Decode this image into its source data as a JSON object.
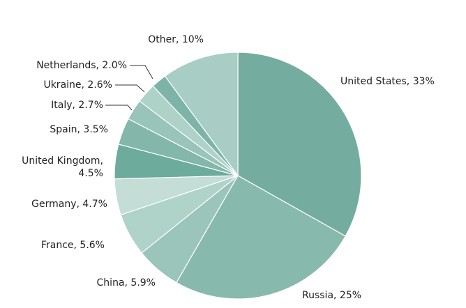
{
  "chart_data": {
    "type": "pie",
    "title": "",
    "start": "12 o'clock",
    "direction": "clockwise",
    "slices": [
      {
        "name": "United States",
        "value": 33,
        "label": "United States, 33%",
        "color": "#74ad9f"
      },
      {
        "name": "Russia",
        "value": 25,
        "label": "Russia, 25%",
        "color": "#87b9ad"
      },
      {
        "name": "China",
        "value": 5.9,
        "label": "China, 5.9%",
        "color": "#9bc5bb"
      },
      {
        "name": "France",
        "value": 5.6,
        "label": "France, 5.6%",
        "color": "#afd2c9"
      },
      {
        "name": "Germany",
        "value": 4.7,
        "label": "Germany, 4.7%",
        "color": "#c4ddd6"
      },
      {
        "name": "United Kingdom",
        "value": 4.5,
        "label": [
          "United Kingdom,",
          "4.5%"
        ],
        "color": "#6dab9c"
      },
      {
        "name": "Spain",
        "value": 3.5,
        "label": "Spain, 3.5%",
        "color": "#82b7aa"
      },
      {
        "name": "Italy",
        "value": 2.7,
        "label": "Italy, 2.7%",
        "color": "#98c4b9"
      },
      {
        "name": "Ukraine",
        "value": 2.6,
        "label": "Ukraine, 2.6%",
        "color": "#aed1c8"
      },
      {
        "name": "Netherlands",
        "value": 2.0,
        "label": "Netherlands, 2.0%",
        "color": "#7db4a7"
      },
      {
        "name": "Other",
        "value": 10,
        "label": "Other, 10%",
        "color": "#a7cdc4"
      }
    ]
  }
}
